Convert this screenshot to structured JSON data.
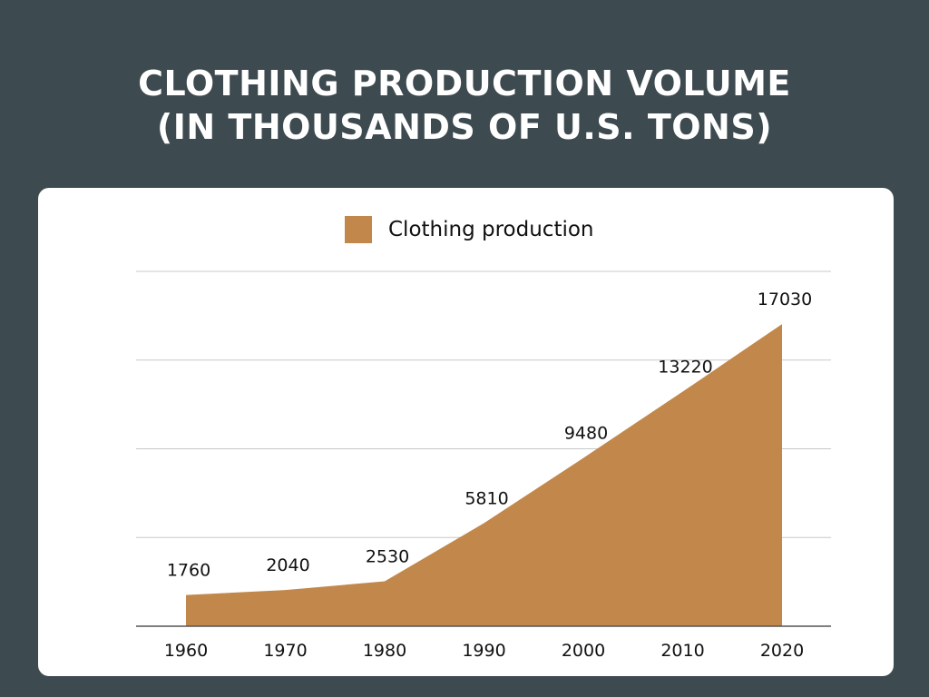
{
  "title": {
    "line1": "CLOTHING PRODUCTION VOLUME",
    "line2": "(IN THOUSANDS OF U.S. TONS)"
  },
  "colors": {
    "background": "#3d4a50",
    "area": "#c2874a",
    "grid": "#c8c8c8",
    "axis": "#555555"
  },
  "chart_data": {
    "type": "area",
    "title": "CLOTHING PRODUCTION VOLUME (IN THOUSANDS OF U.S. TONS)",
    "categories": [
      "1960",
      "1970",
      "1980",
      "1990",
      "2000",
      "2010",
      "2020"
    ],
    "series": [
      {
        "name": "Clothing production",
        "values": [
          1760,
          2040,
          2530,
          5810,
          9480,
          13220,
          17030
        ]
      }
    ],
    "data_labels": [
      "1760",
      "2040",
      "2530",
      "5810",
      "9480",
      "13220",
      "17030"
    ],
    "ylim": [
      0,
      20000
    ],
    "grid": true,
    "legend": "top-center",
    "xlabel": "",
    "ylabel": ""
  }
}
